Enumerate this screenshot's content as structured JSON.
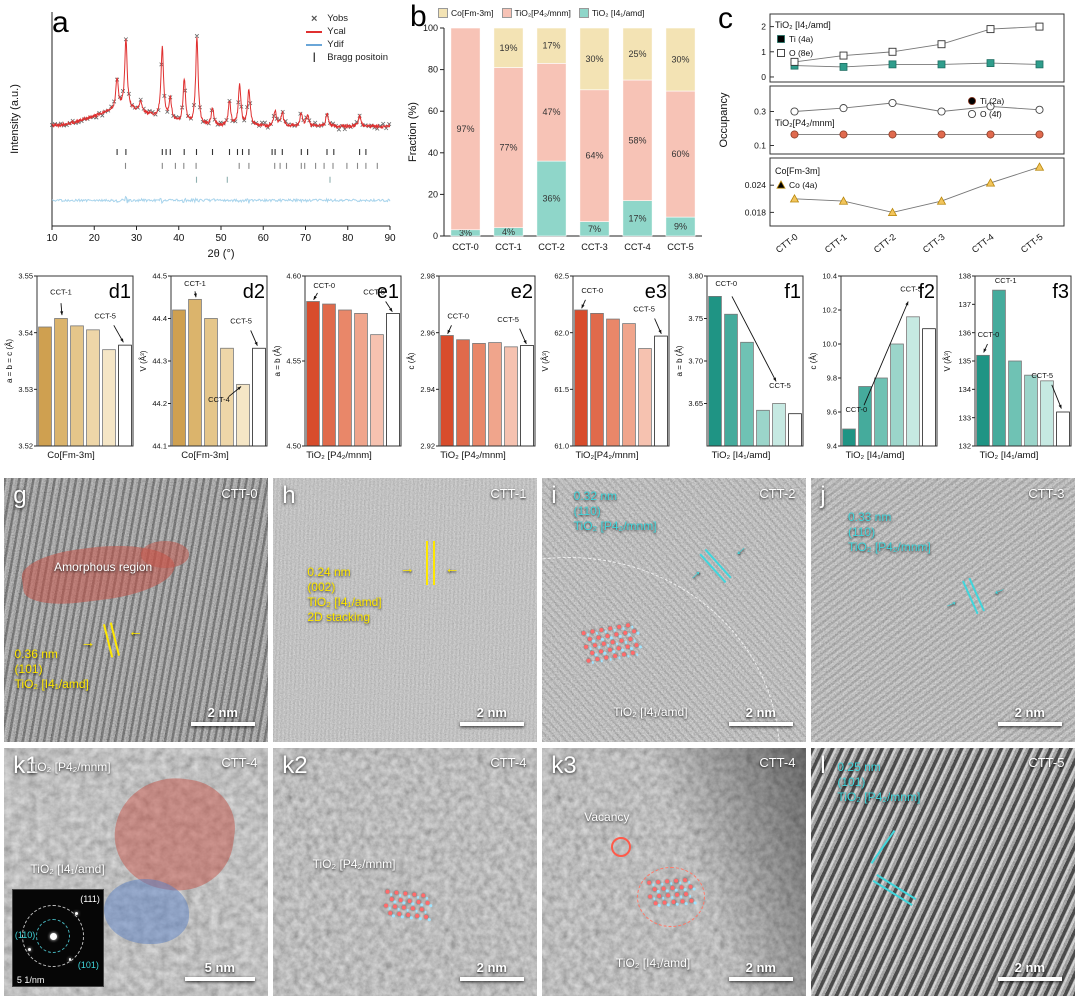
{
  "colors": {
    "accent_yellow": "#ffe800",
    "accent_cyan": "#40d6dc",
    "xrd_ycal": "#e03030",
    "xrd_ydif": "#6aa6d8",
    "stack_teal": "#8fd6c9",
    "stack_pink": "#f7c3b6",
    "stack_tan": "#f3e3b4"
  },
  "panel_a": {
    "letter": "a",
    "legend": [
      {
        "label": "Yobs",
        "color": "#555555"
      },
      {
        "label": "Ycal",
        "color": "#e03030"
      },
      {
        "label": "Ydif",
        "color": "#6aa6d8"
      },
      {
        "label": "Bragg positoin",
        "color": "#333333"
      }
    ]
  },
  "panel_b": {
    "letter": "b",
    "legend": [
      "Co[Fm-3m]",
      "TiO₂[P4₂/mnm]",
      "TiO₂ [I4₁/amd]"
    ]
  },
  "panel_c": {
    "letter": "c",
    "ylabel": "Occupancy"
  },
  "chart_data": [
    {
      "id": "a",
      "type": "line",
      "xlabel": "2θ (°)",
      "ylabel": "Intensity (a.u.)",
      "xlim": [
        10,
        90
      ],
      "xticks": [
        10,
        20,
        30,
        40,
        50,
        60,
        70,
        80,
        90
      ],
      "legend": [
        "Yobs",
        "Ycal",
        "Ydif",
        "Bragg positoin"
      ],
      "peaks": [
        {
          "x": 25.4,
          "h": 0.35
        },
        {
          "x": 27.5,
          "h": 0.78
        },
        {
          "x": 31.0,
          "h": 0.12
        },
        {
          "x": 36.1,
          "h": 0.82
        },
        {
          "x": 38.0,
          "h": 0.25
        },
        {
          "x": 41.3,
          "h": 0.5
        },
        {
          "x": 44.3,
          "h": 1.0
        },
        {
          "x": 48.0,
          "h": 0.2
        },
        {
          "x": 52.0,
          "h": 0.28
        },
        {
          "x": 54.4,
          "h": 0.46
        },
        {
          "x": 56.6,
          "h": 0.42
        },
        {
          "x": 62.8,
          "h": 0.18
        },
        {
          "x": 64.5,
          "h": 0.15
        },
        {
          "x": 69.0,
          "h": 0.15
        },
        {
          "x": 70.5,
          "h": 0.12
        },
        {
          "x": 75.1,
          "h": 0.15
        },
        {
          "x": 82.8,
          "h": 0.12
        }
      ],
      "bragg_rows": [
        [
          25.4,
          27.5,
          36.1,
          37.0,
          38.0,
          41.3,
          44.2,
          48.0,
          52.0,
          53.9,
          55.1,
          56.6,
          62.1,
          62.8,
          64.5,
          69.0,
          70.5,
          75.1,
          76.7,
          82.8,
          84.3
        ],
        [
          27.4,
          36.1,
          39.2,
          41.2,
          44.1,
          54.3,
          56.6,
          62.7,
          64.0,
          65.5,
          69.0,
          69.8,
          72.4,
          74.4,
          76.5,
          79.8,
          82.3,
          84.3,
          87.0
        ],
        [
          44.2,
          51.5,
          75.8
        ]
      ]
    },
    {
      "id": "b",
      "type": "bar-stacked",
      "ylabel": "Fraction (%)",
      "ylim": [
        0,
        100
      ],
      "yticks": [
        0,
        20,
        40,
        60,
        80,
        100
      ],
      "categories": [
        "CCT-0",
        "CCT-1",
        "CCT-2",
        "CCT-3",
        "CCT-4",
        "CCT-5"
      ],
      "series": [
        {
          "name": "TiO₂ [I4₁/amd]",
          "color": "#8fd6c9",
          "values": [
            3,
            4,
            36,
            7,
            17,
            9
          ]
        },
        {
          "name": "TiO₂[P4₂/mnm]",
          "color": "#f7c3b6",
          "values": [
            97,
            77,
            47,
            64,
            58,
            60
          ]
        },
        {
          "name": "Co[Fm-3m]",
          "color": "#f3e3b4",
          "values": [
            0,
            19,
            17,
            30,
            25,
            30
          ]
        }
      ]
    },
    {
      "id": "c1",
      "type": "line",
      "title": "TiO₂ [I4₁/amd]",
      "ylim": [
        -0.2,
        2.5
      ],
      "yticks": [
        0,
        1,
        2
      ],
      "categories": [
        "CTT-0",
        "CTT-1",
        "CTT-2",
        "CTT-3",
        "CTT-4",
        "CTT-5"
      ],
      "series": [
        {
          "name": "Ti (4a)",
          "marker": "sq",
          "color": "#2f9d8c",
          "values": [
            0.45,
            0.4,
            0.5,
            0.5,
            0.55,
            0.5
          ]
        },
        {
          "name": "O (8e)",
          "marker": "sqo",
          "color": "#ffffff",
          "values": [
            0.6,
            0.85,
            1.0,
            1.3,
            1.9,
            2.0
          ]
        }
      ]
    },
    {
      "id": "c2",
      "type": "line",
      "title": "TiO₂[P4₂/mnm]",
      "ylim": [
        0.05,
        0.45
      ],
      "yticks": [
        0.1,
        0.3
      ],
      "series": [
        {
          "name": "Ti (2a)",
          "marker": "ci",
          "color": "#e06a4e",
          "values": [
            0.165,
            0.165,
            0.165,
            0.165,
            0.165,
            0.165
          ]
        },
        {
          "name": "O (4f)",
          "marker": "cio",
          "color": "#ffffff",
          "values": [
            0.3,
            0.32,
            0.35,
            0.3,
            0.33,
            0.31
          ]
        }
      ]
    },
    {
      "id": "c3",
      "type": "line",
      "title": "Co[Fm-3m]",
      "ylim": [
        0.015,
        0.03
      ],
      "yticks": [
        0.018,
        0.024
      ],
      "series": [
        {
          "name": "Co (4a)",
          "marker": "tri",
          "color": "#f2c55c",
          "values": [
            0.021,
            0.0205,
            0.018,
            0.0205,
            0.0245,
            0.028
          ]
        }
      ]
    },
    {
      "id": "d1",
      "letter": "d1",
      "type": "bar",
      "ylabel": "a = b = c (Å)",
      "group": "Co[Fm-3m]",
      "palette": "tan",
      "categories": [
        "CCT-0",
        "CCT-1",
        "CCT-2",
        "CCT-3",
        "CCT-4",
        "CCT-5"
      ],
      "ylim": [
        3.52,
        3.55
      ],
      "yticks": [
        "3.52",
        "3.53",
        "3.54",
        "3.55"
      ],
      "values": [
        3.541,
        3.5425,
        3.5412,
        3.5405,
        3.537,
        3.5378
      ],
      "ann": [
        {
          "t": "CCT-1",
          "x": 25,
          "y": 11
        },
        {
          "a": [
            25,
            16,
            26,
            23
          ]
        },
        {
          "t": "CCT-5",
          "x": 71,
          "y": 25
        },
        {
          "a": [
            80,
            29,
            90,
            39
          ]
        }
      ]
    },
    {
      "id": "d2",
      "letter": "d2",
      "type": "bar",
      "ylabel": "V (Å³)",
      "group": "Co[Fm-3m]",
      "palette": "tan",
      "categories": [
        "CCT-0",
        "CCT-1",
        "CCT-2",
        "CCT-3",
        "CCT-4",
        "CCT-5"
      ],
      "ylim": [
        44.1,
        44.5
      ],
      "yticks": [
        "44.1",
        "44.2",
        "44.3",
        "44.4",
        "44.5"
      ],
      "values": [
        44.42,
        44.445,
        44.4,
        44.33,
        44.245,
        44.33
      ],
      "ann": [
        {
          "t": "CCT-1",
          "x": 25,
          "y": 6
        },
        {
          "a": [
            25,
            9,
            26,
            12.5
          ]
        },
        {
          "t": "CCT-4",
          "x": 50,
          "y": 74
        },
        {
          "a": [
            60,
            71,
            73,
            65
          ]
        },
        {
          "t": "CCT-5",
          "x": 73,
          "y": 28
        },
        {
          "a": [
            83,
            32,
            90,
            41
          ]
        }
      ]
    },
    {
      "id": "e1",
      "letter": "e1",
      "type": "bar",
      "ylabel": "a = b (Å)",
      "group": "TiO₂ [P4₂/mnm]",
      "palette": "red",
      "categories": [
        "CCT-0",
        "CCT-1",
        "CCT-2",
        "CCT-3",
        "CCT-4",
        "CCT-5"
      ],
      "ylim": [
        4.5,
        4.6
      ],
      "yticks": [
        "4.50",
        "4.55",
        "4.60"
      ],
      "values": [
        4.585,
        4.5835,
        4.58,
        4.578,
        4.5655,
        4.578
      ],
      "ann": [
        {
          "t": "CCT-0",
          "x": 20,
          "y": 7
        },
        {
          "a": [
            13,
            10,
            9,
            14
          ]
        },
        {
          "t": "CCT-5",
          "x": 72,
          "y": 11
        },
        {
          "a": [
            84,
            15,
            91,
            21
          ]
        }
      ]
    },
    {
      "id": "e2",
      "letter": "e2",
      "type": "bar",
      "ylabel": "c (Å)",
      "group": "TiO₂ [P4₂/mnm]",
      "palette": "red",
      "categories": [
        "CCT-0",
        "CCT-1",
        "CCT-2",
        "CCT-3",
        "CCT-4",
        "CCT-5"
      ],
      "ylim": [
        2.92,
        2.98
      ],
      "yticks": [
        "2.92",
        "2.94",
        "2.96",
        "2.98"
      ],
      "values": [
        2.959,
        2.9575,
        2.9562,
        2.9565,
        2.955,
        2.9555
      ],
      "ann": [
        {
          "t": "CCT-0",
          "x": 20,
          "y": 25
        },
        {
          "a": [
            13,
            29,
            9,
            34
          ]
        },
        {
          "t": "CCT-5",
          "x": 72,
          "y": 27
        },
        {
          "a": [
            84,
            31,
            91,
            40
          ]
        }
      ]
    },
    {
      "id": "e3",
      "letter": "e3",
      "type": "bar",
      "ylabel": "V (Å³)",
      "group": "TiO₂[P4₂/mnm]",
      "palette": "red",
      "categories": [
        "CCT-0",
        "CCT-1",
        "CCT-2",
        "CCT-3",
        "CCT-4",
        "CCT-5"
      ],
      "ylim": [
        61.0,
        62.5
      ],
      "yticks": [
        "61.0",
        "61.5",
        "62.0",
        "62.5"
      ],
      "values": [
        62.2,
        62.17,
        62.12,
        62.08,
        61.86,
        61.97
      ],
      "ann": [
        {
          "t": "CCT-0",
          "x": 20,
          "y": 10
        },
        {
          "a": [
            13,
            14,
            9,
            19
          ]
        },
        {
          "t": "CCT-5",
          "x": 74,
          "y": 21
        },
        {
          "a": [
            85,
            25,
            92,
            34
          ]
        }
      ]
    },
    {
      "id": "f1",
      "letter": "f1",
      "type": "bar",
      "ylabel": "a = b (Å)",
      "group": "TiO₂ [I4₁/amd]",
      "palette": "teal",
      "categories": [
        "CCT-0",
        "CCT-1",
        "CCT-2",
        "CCT-3",
        "CCT-4",
        "CCT-5"
      ],
      "ylim": [
        3.6,
        3.8
      ],
      "yticks": [
        "3.65",
        "3.70",
        "3.75",
        "3.80"
      ],
      "values": [
        3.776,
        3.755,
        3.722,
        3.642,
        3.65,
        3.638
      ],
      "ann": [
        {
          "t": "CCT-0",
          "x": 20,
          "y": 6
        },
        {
          "t": "CCT-5",
          "x": 76,
          "y": 66
        },
        {
          "a": [
            26,
            12,
            72,
            62
          ]
        }
      ]
    },
    {
      "id": "f2",
      "letter": "f2",
      "type": "bar",
      "ylabel": "c (Å)",
      "group": "TiO₂ [I4₁/amd]",
      "palette": "teal",
      "categories": [
        "CCT-0",
        "CCT-1",
        "CCT-2",
        "CCT-3",
        "CCT-4",
        "CCT-5"
      ],
      "ylim": [
        9.4,
        10.4
      ],
      "yticks": [
        "9.4",
        "9.6",
        "9.8",
        "10.0",
        "10.2",
        "10.4"
      ],
      "values": [
        9.5,
        9.75,
        9.8,
        10.0,
        10.16,
        10.09
      ],
      "ann": [
        {
          "t": "CCT-0",
          "x": 16,
          "y": 80
        },
        {
          "t": "CCT-5",
          "x": 73,
          "y": 9
        },
        {
          "a": [
            24,
            76,
            70,
            15
          ]
        }
      ]
    },
    {
      "id": "f3",
      "letter": "f3",
      "type": "bar",
      "ylabel": "V (Å³)",
      "group": "TiO₂ [I4₁/amd]",
      "palette": "teal",
      "categories": [
        "CCT-0",
        "CCT-1",
        "CCT-2",
        "CCT-3",
        "CCT-4",
        "CCT-5"
      ],
      "ylim": [
        132,
        138
      ],
      "yticks": [
        "132",
        "133",
        "134",
        "135",
        "136",
        "137",
        "138"
      ],
      "values": [
        135.2,
        137.5,
        135.0,
        134.5,
        134.3,
        133.2
      ],
      "ann": [
        {
          "t": "CCT-0",
          "x": 14,
          "y": 36
        },
        {
          "a": [
            13,
            40,
            9,
            45
          ]
        },
        {
          "t": "CCT-1",
          "x": 32,
          "y": 4
        },
        {
          "t": "CCT-5",
          "x": 70,
          "y": 60
        },
        {
          "a": [
            80,
            64,
            90,
            78
          ]
        }
      ]
    }
  ],
  "tem": {
    "g": {
      "letter": "g",
      "sample": "CTT-0",
      "region_label": "Amorphous region",
      "d_value": "0.36 nm",
      "plane": "(101)",
      "phase": "TiO₂ [I4₁/amd]",
      "scalebar": "2 nm"
    },
    "h": {
      "letter": "h",
      "sample": "CTT-1",
      "d_value": "0.24 nm",
      "plane": "(002)",
      "phase": "TiO₂ [I4₁/amd]",
      "extra": "2D stacking",
      "scalebar": "2 nm"
    },
    "i": {
      "letter": "i",
      "sample": "CTT-2",
      "d_value": "0.32 nm",
      "plane": "(110)",
      "phase": "TiO₂ [P4₂/mnm]",
      "bottom_phase": "TiO₂ [I4₁/amd]",
      "scalebar": "2 nm"
    },
    "j": {
      "letter": "j",
      "sample": "CTT-3",
      "d_value": "0.33 nm",
      "plane": "(110)",
      "phase": "TiO₂ [P4₂/mnm]",
      "scalebar": "2 nm"
    },
    "k1": {
      "letter": "k1",
      "sample": "CTT-4",
      "top_phase": "TiO₂ [P4₂/mnm]",
      "mid_phase": "TiO₂ [I4₁/amd]",
      "fft_111": "(111)",
      "fft_110": "(110)",
      "fft_101": "(101)",
      "fft_scale": "5 1/nm",
      "scalebar": "5 nm"
    },
    "k2": {
      "letter": "k2",
      "sample": "CTT-4",
      "phase": "TiO₂ [P4₂/mnm]",
      "scalebar": "2 nm"
    },
    "k3": {
      "letter": "k3",
      "sample": "CTT-4",
      "vacancy_label": "Vacancy",
      "phase": "TiO₂ [I4₁/amd]",
      "scalebar": "2 nm"
    },
    "l": {
      "letter": "l",
      "sample": "CTT-5",
      "d_value": "0.25 nm",
      "plane": "(101)",
      "phase": "TiO₂ [P4₂/mnm]",
      "scalebar": "2 nm"
    }
  }
}
